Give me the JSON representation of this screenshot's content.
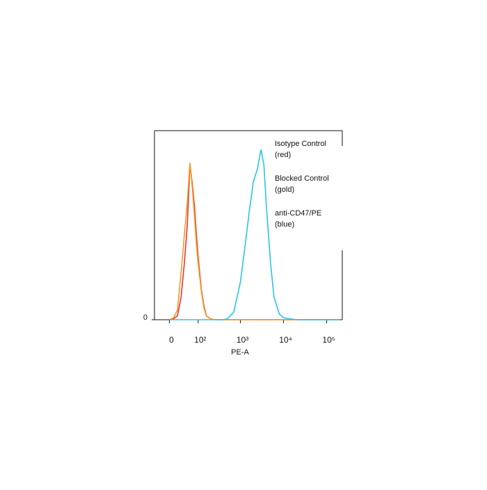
{
  "chart_data": {
    "type": "line",
    "xlabel": "PE-A",
    "xscale": "biexponential",
    "x": [
      0,
      10,
      20,
      30,
      40,
      50,
      60,
      70,
      80,
      90,
      100,
      120,
      140,
      160,
      200,
      250,
      300,
      400,
      500,
      700,
      1000,
      1300,
      1600,
      2000,
      2500,
      3000,
      3500,
      4000,
      5000,
      6000,
      8000,
      10000,
      20000,
      50000,
      100000,
      200000
    ],
    "series": [
      {
        "name": "Isotype Control",
        "note": "(red)",
        "color": "#e8323c",
        "values": [
          0,
          0.5,
          2,
          12,
          30,
          50,
          82,
          72,
          60,
          45,
          33,
          16,
          7,
          2,
          0.5,
          0,
          0,
          0,
          0,
          0,
          0,
          0,
          0,
          0,
          0,
          0,
          0,
          0,
          0,
          0,
          0,
          0,
          0,
          0,
          0,
          0
        ]
      },
      {
        "name": "Blocked Control",
        "note": "(gold)",
        "color": "#f39a1f",
        "values": [
          0,
          1,
          5,
          25,
          45,
          62,
          83,
          70,
          55,
          40,
          30,
          15,
          6,
          2,
          0.5,
          0,
          0,
          0,
          0,
          0,
          0,
          0,
          0,
          0,
          0,
          0,
          0,
          0,
          0,
          0,
          0,
          0,
          0,
          0,
          0,
          0
        ]
      },
      {
        "name": "anti-CD47/PE",
        "note": "(blue)",
        "color": "#29c4e8",
        "values": [
          0,
          0,
          0,
          0,
          0,
          0,
          0,
          0,
          0,
          0,
          0,
          0,
          0,
          0,
          0,
          0,
          0,
          0,
          0.5,
          4,
          20,
          40,
          57,
          73,
          80,
          90,
          82,
          60,
          30,
          12,
          3,
          1,
          0,
          0,
          0,
          0
        ]
      }
    ],
    "xlim": [
      -40,
      230000
    ],
    "xticks": [
      0,
      {
        "value": 100,
        "label": "10²"
      },
      {
        "value": 1000,
        "label": "10³"
      },
      {
        "value": 10000,
        "label": "10⁴"
      },
      {
        "value": 100000,
        "label": "10⁵"
      }
    ],
    "ylim": [
      0,
      100
    ],
    "yticks": [
      0
    ]
  }
}
